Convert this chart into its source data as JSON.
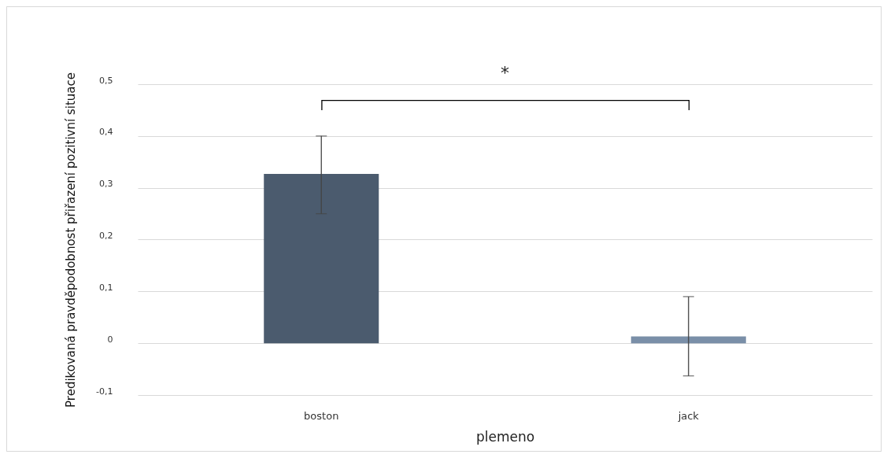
{
  "chart_data": {
    "type": "bar",
    "xlabel": "plemeno",
    "ylabel": "Predikovaná pravděpodobnost přiřazení pozitivní situace",
    "categories": [
      "boston",
      "jack"
    ],
    "values": [
      0.327,
      0.013
    ],
    "colors": [
      "#4b5b6e",
      "#7a8fa8"
    ],
    "errors": [
      [
        0.25,
        0.4
      ],
      [
        -0.063,
        0.09
      ]
    ],
    "ylim": [
      -0.1,
      0.5
    ],
    "yticks": [
      {
        "value": -0.1,
        "label": "-0,1"
      },
      0,
      {
        "value": 0.1,
        "label": "0,1"
      },
      {
        "value": 0.2,
        "label": "0,2"
      },
      {
        "value": 0.3,
        "label": "0,3"
      },
      {
        "value": 0.4,
        "label": "0,4"
      },
      {
        "value": 0.5,
        "label": "0,5"
      }
    ],
    "grid": "y",
    "annotations": [
      "*"
    ]
  }
}
